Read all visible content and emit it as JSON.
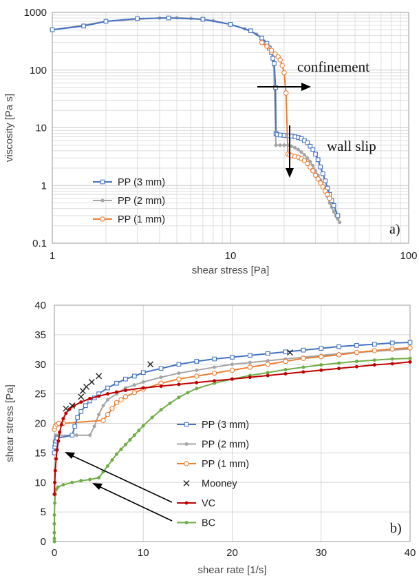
{
  "chart_data": [
    {
      "type": "line",
      "panel_label": "a)",
      "xlabel": "shear stress [Pa]",
      "ylabel": "viscosity [Pa s]",
      "xscale": "log",
      "yscale": "log",
      "xlim": [
        1,
        100
      ],
      "ylim": [
        0.1,
        1000
      ],
      "x_ticks": [
        "1",
        "10",
        "100"
      ],
      "y_ticks": [
        "0.1",
        "1",
        "10",
        "100",
        "1000"
      ],
      "grid": true,
      "legend_position": "lower-left",
      "annotations": [
        {
          "text": "confinement"
        },
        {
          "text": "wall slip"
        }
      ],
      "series": [
        {
          "name": "PP (3 mm)",
          "color": "#4472C4",
          "marker": "square",
          "x": [
            1,
            1.5,
            2,
            3,
            4.5,
            7,
            10,
            13,
            15,
            16,
            16.5,
            17,
            17.3,
            17.6,
            17.9,
            18,
            18.3,
            19,
            20,
            21,
            22,
            23,
            24,
            25,
            26,
            27,
            28,
            29,
            30,
            31,
            32,
            33,
            34,
            35,
            36,
            37,
            38,
            40
          ],
          "y": [
            500,
            580,
            700,
            780,
            800,
            760,
            620,
            480,
            360,
            290,
            240,
            200,
            160,
            130,
            50,
            8,
            7.6,
            7.5,
            7.4,
            7.3,
            7.2,
            7.0,
            6.8,
            6.5,
            6.0,
            5.5,
            4.8,
            4.2,
            3.5,
            2.8,
            2.1,
            1.6,
            1.2,
            0.9,
            0.7,
            0.55,
            0.45,
            0.3
          ]
        },
        {
          "name": "PP (2 mm)",
          "color": "#A5A5A5",
          "marker": "circle",
          "x": [
            1,
            1.5,
            2,
            3,
            4,
            5,
            6,
            8,
            10,
            12,
            14,
            15,
            16,
            16.5,
            17,
            17.5,
            18,
            19,
            20,
            21,
            22,
            23,
            24,
            25,
            26,
            27,
            28,
            29,
            30,
            31,
            32,
            33,
            34,
            35,
            36,
            37,
            38,
            39,
            40,
            41
          ],
          "y": [
            500,
            600,
            700,
            760,
            800,
            810,
            790,
            720,
            620,
            520,
            420,
            360,
            300,
            260,
            200,
            120,
            5,
            5,
            5,
            5,
            4.8,
            4.5,
            4.2,
            3.8,
            3.4,
            3.0,
            2.6,
            2.2,
            1.8,
            1.5,
            1.25,
            1.0,
            0.8,
            0.65,
            0.5,
            0.42,
            0.35,
            0.3,
            0.26,
            0.23
          ]
        },
        {
          "name": "PP (1 mm)",
          "color": "#ED7D31",
          "marker": "circle-open",
          "x": [
            15,
            16,
            17,
            17.8,
            18.5,
            19,
            19.5,
            20,
            20.5,
            21,
            21.5,
            22,
            23,
            24,
            25,
            26,
            27,
            28,
            29,
            30,
            31,
            32,
            33,
            34,
            35,
            36
          ],
          "y": [
            300,
            260,
            220,
            190,
            170,
            150,
            120,
            90,
            40,
            3.5,
            3.4,
            3.3,
            3.2,
            3.1,
            2.9,
            2.7,
            2.4,
            2.1,
            1.8,
            1.5,
            1.3,
            1.1,
            0.95,
            0.8,
            0.7,
            0.6
          ]
        }
      ]
    },
    {
      "type": "line",
      "panel_label": "b)",
      "xlabel": "shear rate [1/s]",
      "ylabel": "shear stress [Pa]",
      "xlim": [
        0,
        40
      ],
      "ylim": [
        0,
        40
      ],
      "x_ticks": [
        "0",
        "10",
        "20",
        "30",
        "40"
      ],
      "y_ticks": [
        "0",
        "5",
        "10",
        "15",
        "20",
        "25",
        "30",
        "35",
        "40"
      ],
      "grid": true,
      "legend_position": "center-right",
      "series": [
        {
          "name": "PP (3 mm)",
          "color": "#4472C4",
          "marker": "square",
          "x": [
            0,
            0.05,
            0.1,
            0.2,
            0.3,
            2,
            2.3,
            2.6,
            3,
            3.5,
            4,
            4.5,
            5,
            6,
            7,
            8,
            9,
            10,
            12,
            14,
            16,
            18,
            20,
            22,
            24,
            26,
            28,
            30,
            32,
            34,
            36,
            38,
            40
          ],
          "y": [
            15,
            16,
            16.5,
            17,
            17.5,
            18,
            19.5,
            21,
            22,
            23,
            23.8,
            24.3,
            25,
            26,
            26.8,
            27.5,
            28,
            28.6,
            29.3,
            30,
            30.5,
            30.9,
            31.2,
            31.5,
            31.8,
            32.1,
            32.4,
            32.7,
            33,
            33.2,
            33.4,
            33.6,
            33.7
          ]
        },
        {
          "name": "PP (2 mm)",
          "color": "#A5A5A5",
          "marker": "circle",
          "x": [
            0,
            0.1,
            0.2,
            0.5,
            2.5,
            4,
            4.5,
            5,
            5.5,
            6,
            7,
            8,
            9,
            10,
            12,
            14,
            16,
            18,
            20,
            22,
            24,
            26,
            28,
            30,
            32,
            34,
            36,
            38,
            40
          ],
          "y": [
            17,
            17.5,
            18,
            18,
            18,
            18,
            19.5,
            21.5,
            23,
            24,
            25,
            26,
            26.5,
            27,
            27.8,
            28.5,
            29,
            29.5,
            30,
            30.3,
            30.6,
            30.9,
            31.2,
            31.5,
            31.8,
            32,
            32.2,
            32.4,
            32.6
          ]
        },
        {
          "name": "PP (1 mm)",
          "color": "#ED7D31",
          "marker": "circle-open",
          "x": [
            0,
            0.1,
            0.3,
            0.5,
            1,
            5.5,
            6,
            6.5,
            7,
            7.5,
            8,
            9,
            10,
            12,
            14,
            16,
            18,
            20,
            22,
            24,
            26,
            28,
            30,
            32,
            34,
            36,
            38,
            40
          ],
          "y": [
            19,
            19.5,
            19.8,
            20,
            20,
            20.5,
            21.5,
            22.5,
            23.5,
            24,
            24.5,
            25.2,
            25.8,
            26.8,
            27.5,
            28,
            28.5,
            29,
            29.5,
            30,
            30.5,
            31,
            31.3,
            31.6,
            32,
            32.3,
            32.6,
            32.8
          ]
        },
        {
          "name": "Mooney",
          "color": "#222222",
          "marker": "cross",
          "x": [
            1.3,
            2,
            3,
            3.2,
            3.6,
            4.2,
            5,
            10.8,
            26.5
          ],
          "y": [
            22.5,
            23,
            24.5,
            25.5,
            26.2,
            27,
            28,
            30,
            32
          ]
        },
        {
          "name": "VC",
          "color": "#C00000",
          "marker": "circle",
          "x": [
            0,
            0.05,
            0.1,
            0.2,
            0.3,
            0.45,
            0.6,
            0.8,
            1.0,
            1.3,
            1.7,
            2.2,
            3,
            4,
            5,
            6,
            7,
            8,
            10,
            12,
            14,
            16,
            18,
            20,
            22,
            24,
            26,
            28,
            30,
            32,
            34,
            36,
            38,
            40
          ],
          "y": [
            8,
            10,
            12,
            14,
            15.5,
            17,
            18.5,
            19.8,
            20.8,
            21.7,
            22.4,
            23,
            23.6,
            24.2,
            24.6,
            25,
            25.3,
            25.6,
            26,
            26.3,
            26.6,
            26.9,
            27.2,
            27.5,
            27.8,
            28.1,
            28.4,
            28.7,
            29,
            29.3,
            29.6,
            29.9,
            30.1,
            30.4
          ]
        },
        {
          "name": "BC",
          "color": "#70AD47",
          "marker": "circle",
          "x": [
            0,
            0,
            0,
            0,
            0,
            0.05,
            0.1,
            0.2,
            0.4,
            1,
            2,
            3,
            4,
            5,
            5.5,
            6,
            6.5,
            7,
            7.5,
            8,
            8.5,
            9,
            9.5,
            10,
            11,
            12,
            13,
            14,
            15,
            16,
            18,
            20,
            22,
            24,
            26,
            28,
            30,
            32,
            34,
            36,
            38,
            40
          ],
          "y": [
            0,
            0.5,
            1.5,
            3,
            4.5,
            6.5,
            8,
            8.8,
            9.2,
            9.6,
            10,
            10.3,
            10.5,
            10.8,
            11.8,
            12.8,
            13.8,
            14.8,
            15.6,
            16.4,
            17.2,
            18,
            18.8,
            19.6,
            21,
            22.3,
            23.4,
            24.4,
            25.2,
            25.9,
            26.8,
            27.5,
            28.1,
            28.6,
            29.1,
            29.5,
            29.9,
            30.2,
            30.5,
            30.7,
            30.9,
            31
          ]
        }
      ]
    }
  ]
}
